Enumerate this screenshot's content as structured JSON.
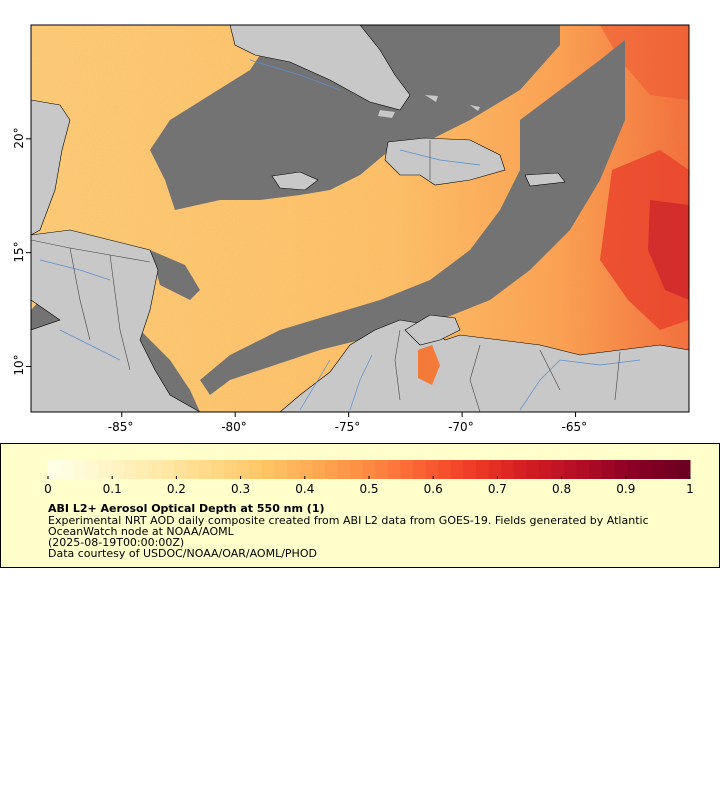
{
  "map": {
    "lon_ticks": [
      "-85°",
      "-80°",
      "-75°",
      "-70°",
      "-65°"
    ],
    "lat_ticks": [
      "20°",
      "15°",
      "10°"
    ],
    "lon_range": [
      -89,
      -60
    ],
    "lat_range": [
      8,
      25
    ],
    "colors": {
      "land": "#c8c8c8",
      "no_data": "#737373",
      "coast": "#000000",
      "rivers": "#5b8fd0",
      "borders": "#444444"
    }
  },
  "colorbar": {
    "ticks": [
      "0",
      "0.1",
      "0.2",
      "0.3",
      "0.4",
      "0.5",
      "0.6",
      "0.7",
      "0.8",
      "0.9",
      "1"
    ],
    "min": 0,
    "max": 1,
    "colors": [
      "#ffffe6",
      "#fff5c8",
      "#ffe9a8",
      "#ffd886",
      "#ffc566",
      "#fea852",
      "#fd8a42",
      "#fc6133",
      "#ef3a26",
      "#d41d22",
      "#b50e26",
      "#8c0025",
      "#6d0022"
    ]
  },
  "legend": {
    "title": "ABI L2+ Aerosol Optical Depth at 550 nm (1)",
    "line1": "Experimental NRT AOD daily composite created from ABI L2 data from GOES-19. Fields generated by Atlantic",
    "line2": "OceanWatch node at NOAA/AOML",
    "line3": "(2025-08-19T00:00:00Z)",
    "line4": "Data courtesy of USDOC/NOAA/OAR/AOML/PHOD"
  }
}
